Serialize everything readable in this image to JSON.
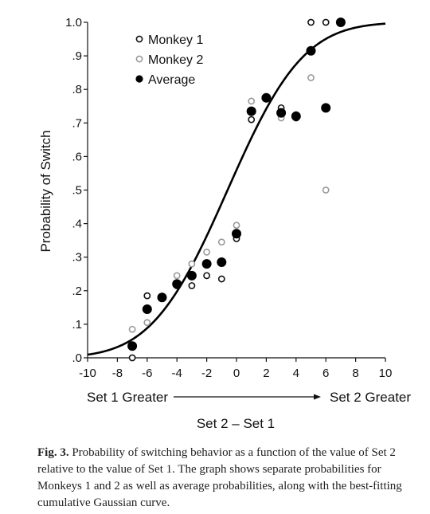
{
  "chart_data": {
    "type": "scatter",
    "title": "",
    "xlabel": "Set 2 – Set 1",
    "ylabel": "Probability of Switch",
    "xlim": [
      -10,
      10
    ],
    "ylim": [
      0,
      1
    ],
    "x_ticks": [
      "-10",
      "-8",
      "-6",
      "-4",
      "-2",
      "0",
      "2",
      "4",
      "6",
      "8",
      "10"
    ],
    "y_ticks": [
      ".0",
      ".1",
      ".2",
      ".3",
      ".4",
      ".5",
      ".6",
      ".7",
      ".8",
      ".9",
      "1.0"
    ],
    "direction_left": "Set 1 Greater",
    "direction_right": "Set 2 Greater",
    "legend_position": "top-left",
    "grid": false,
    "series": [
      {
        "name": "Monkey 1",
        "marker": "open-black",
        "color": "#111111",
        "points": [
          [
            -7,
            0.0
          ],
          [
            -6,
            0.185
          ],
          [
            -4,
            0.215
          ],
          [
            -3,
            0.215
          ],
          [
            -2,
            0.245
          ],
          [
            -1,
            0.235
          ],
          [
            0,
            0.355
          ],
          [
            1,
            0.71
          ],
          [
            3,
            0.745
          ],
          [
            4,
            0.715
          ],
          [
            5,
            1.0
          ],
          [
            6,
            1.0
          ]
        ]
      },
      {
        "name": "Monkey 2",
        "marker": "open-gray",
        "color": "#999999",
        "points": [
          [
            -7,
            0.085
          ],
          [
            -6,
            0.105
          ],
          [
            -4,
            0.245
          ],
          [
            -3,
            0.28
          ],
          [
            -2,
            0.315
          ],
          [
            -1,
            0.345
          ],
          [
            0,
            0.395
          ],
          [
            1,
            0.765
          ],
          [
            3,
            0.715
          ],
          [
            4,
            0.725
          ],
          [
            5,
            0.835
          ],
          [
            6,
            0.5
          ]
        ]
      },
      {
        "name": "Average",
        "marker": "filled-black",
        "color": "#000000",
        "points": [
          [
            -7,
            0.035
          ],
          [
            -6,
            0.145
          ],
          [
            -5,
            0.18
          ],
          [
            -4,
            0.22
          ],
          [
            -3,
            0.245
          ],
          [
            -2,
            0.28
          ],
          [
            -1,
            0.285
          ],
          [
            0,
            0.37
          ],
          [
            1,
            0.735
          ],
          [
            2,
            0.775
          ],
          [
            3,
            0.73
          ],
          [
            4,
            0.72
          ],
          [
            5,
            0.915
          ],
          [
            6,
            0.745
          ],
          [
            7,
            1.0
          ]
        ]
      }
    ],
    "fit_curve": {
      "type": "cumulative-gaussian",
      "mean": -0.6,
      "sd": 4.0
    }
  },
  "caption": {
    "lead": "Fig. 3.",
    "text": " Probability of switching behavior as a function of the value of Set 2 relative to the value of Set 1. The graph shows separate probabilities for Monkeys 1 and 2 as well as average probabilities, along with the best-fitting cumulative Gaussian curve."
  }
}
